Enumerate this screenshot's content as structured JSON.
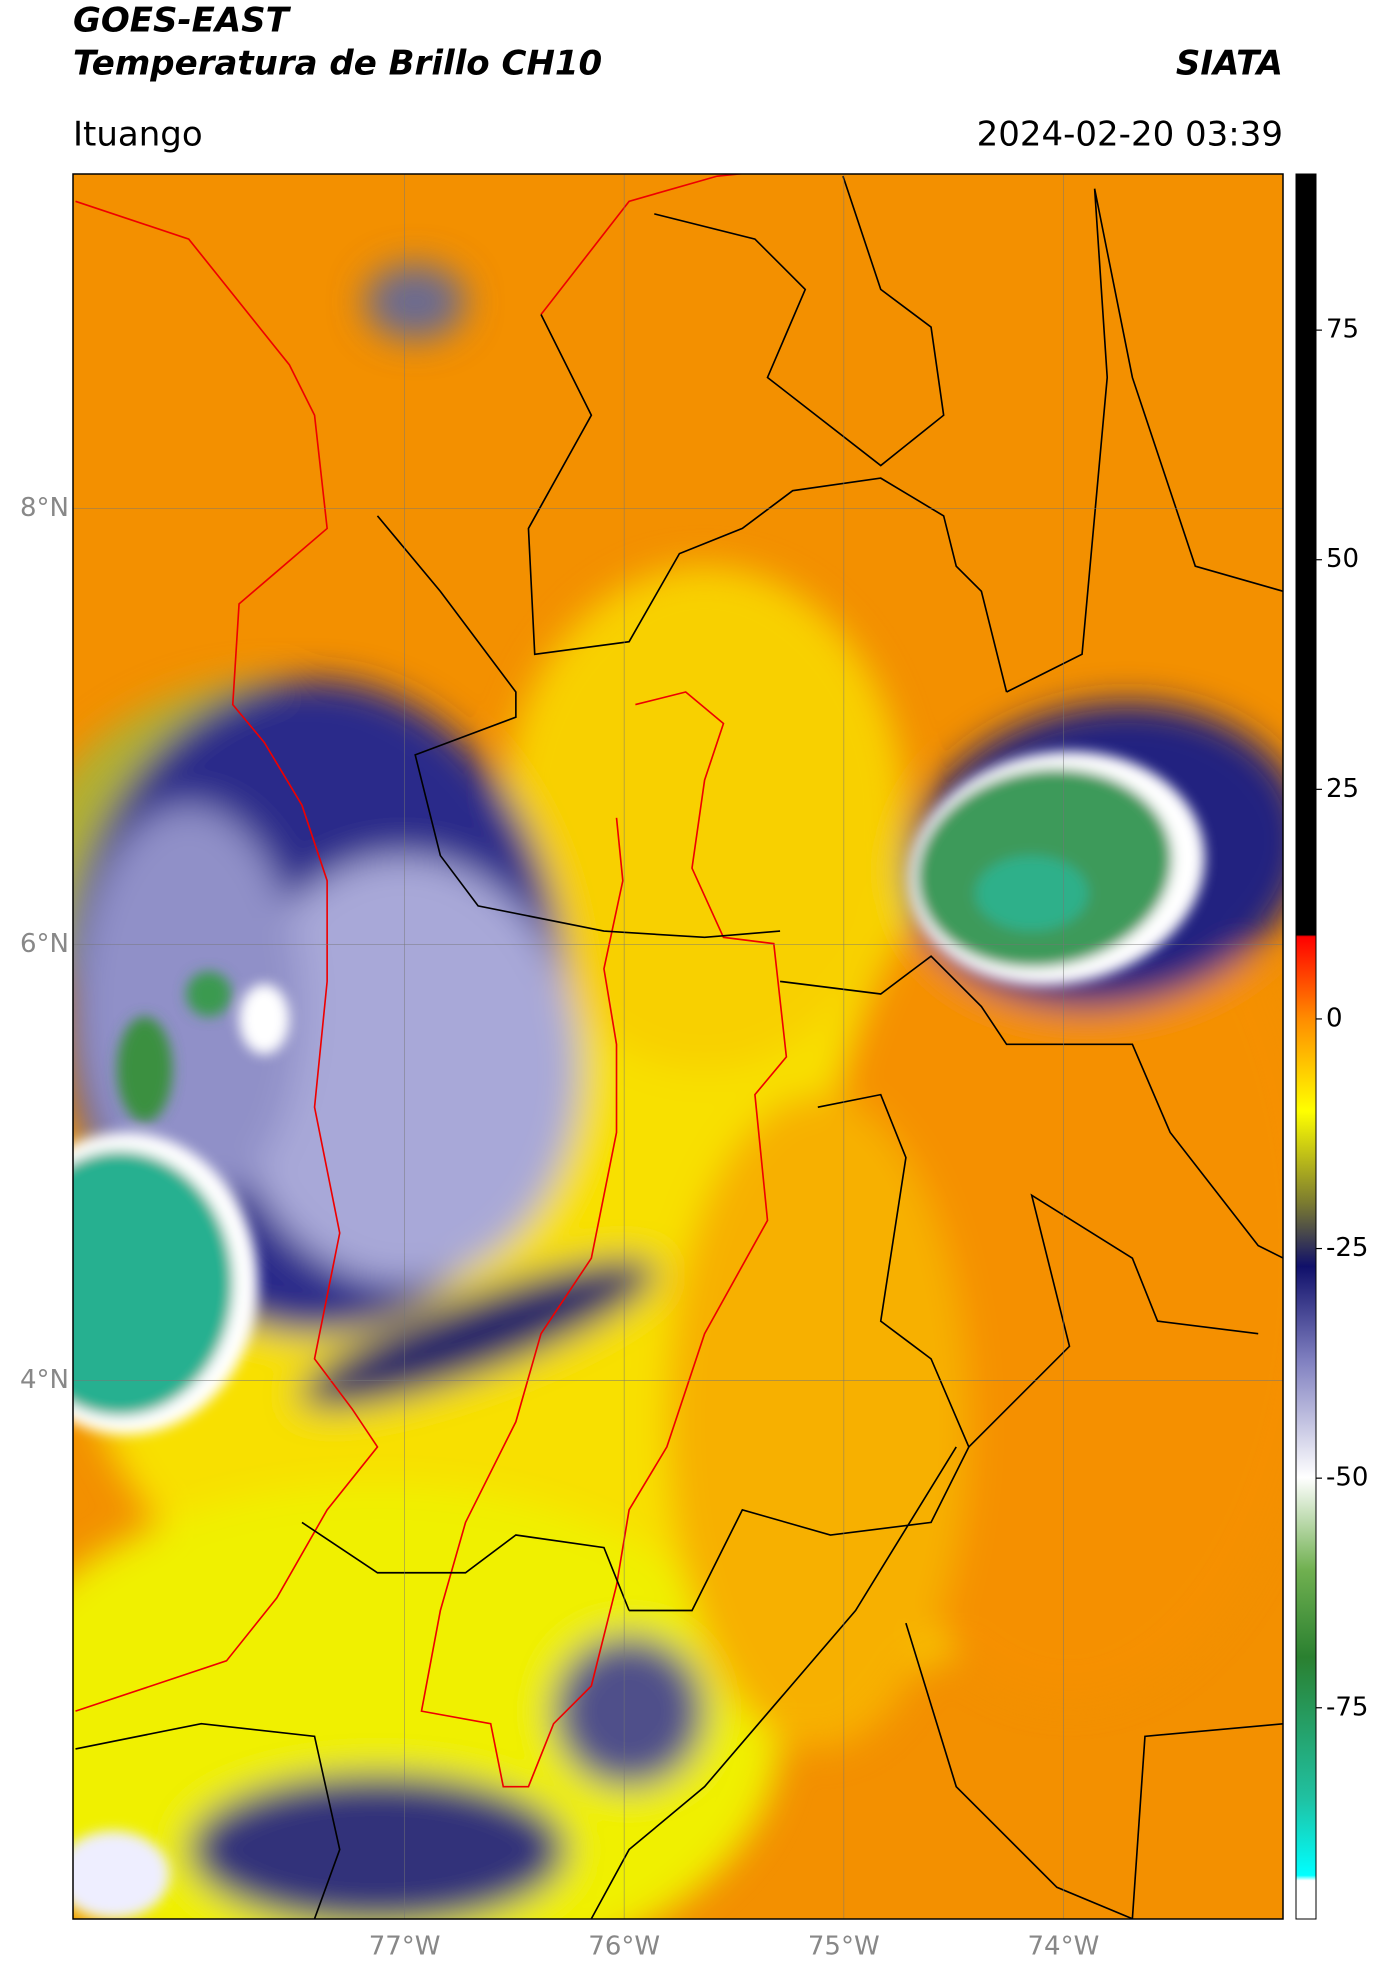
{
  "header": {
    "title": "GOES-EAST",
    "subtitle": "Temperatura de Brillo CH10",
    "brand": "SIATA",
    "place": "Ituango",
    "date": "2024-02-20 03:39"
  },
  "map": {
    "lonlim": [
      -78.51,
      -73.0
    ],
    "latlim": [
      1.53,
      9.535
    ],
    "lat_ticks": [
      {
        "value": 8,
        "label": "8°N"
      },
      {
        "value": 6,
        "label": "6°N"
      },
      {
        "value": 4,
        "label": "4°N"
      }
    ],
    "lon_ticks": [
      {
        "value": -77,
        "label": "77°W"
      },
      {
        "value": -76,
        "label": "76°W"
      },
      {
        "value": -75,
        "label": "75°W"
      },
      {
        "value": -74,
        "label": "74°W"
      }
    ],
    "grid": true
  },
  "colorbar": {
    "lim": [
      -98,
      92
    ],
    "ticks": [
      75,
      50,
      25,
      0,
      -25,
      -50,
      -75
    ]
  }
}
